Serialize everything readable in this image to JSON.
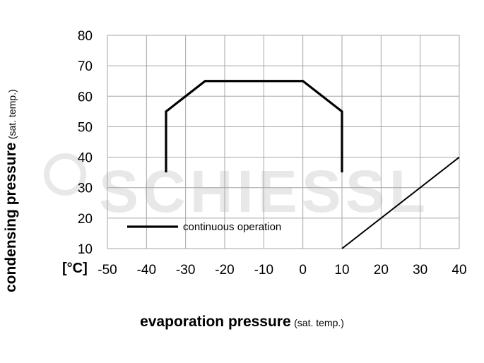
{
  "chart_data": {
    "type": "line",
    "xlabel": "evaporation pressure",
    "xlabel_note": "(sat. temp.)",
    "ylabel": "condensing pressure",
    "ylabel_note": "(sat. temp.)",
    "unit_label": "[°C]",
    "xlim": [
      -50,
      40
    ],
    "ylim": [
      10,
      80
    ],
    "xticks": [
      -50,
      -40,
      -30,
      -20,
      -10,
      0,
      10,
      20,
      30,
      40
    ],
    "yticks": [
      10,
      20,
      30,
      40,
      50,
      60,
      70,
      80
    ],
    "grid": true,
    "legend_position": "bottom-left",
    "series": [
      {
        "name": "continuous operation",
        "points": [
          [
            -35,
            35
          ],
          [
            -35,
            55
          ],
          [
            -25,
            65
          ],
          [
            0,
            65
          ],
          [
            10,
            55
          ],
          [
            10,
            35
          ]
        ]
      },
      {
        "points": [
          [
            10,
            10
          ],
          [
            40,
            40
          ]
        ]
      }
    ],
    "watermark": "SCHIESSL"
  },
  "colors": {
    "line": "#000000",
    "grid": "#a6a6a6",
    "watermark": "#e8e8e8"
  }
}
